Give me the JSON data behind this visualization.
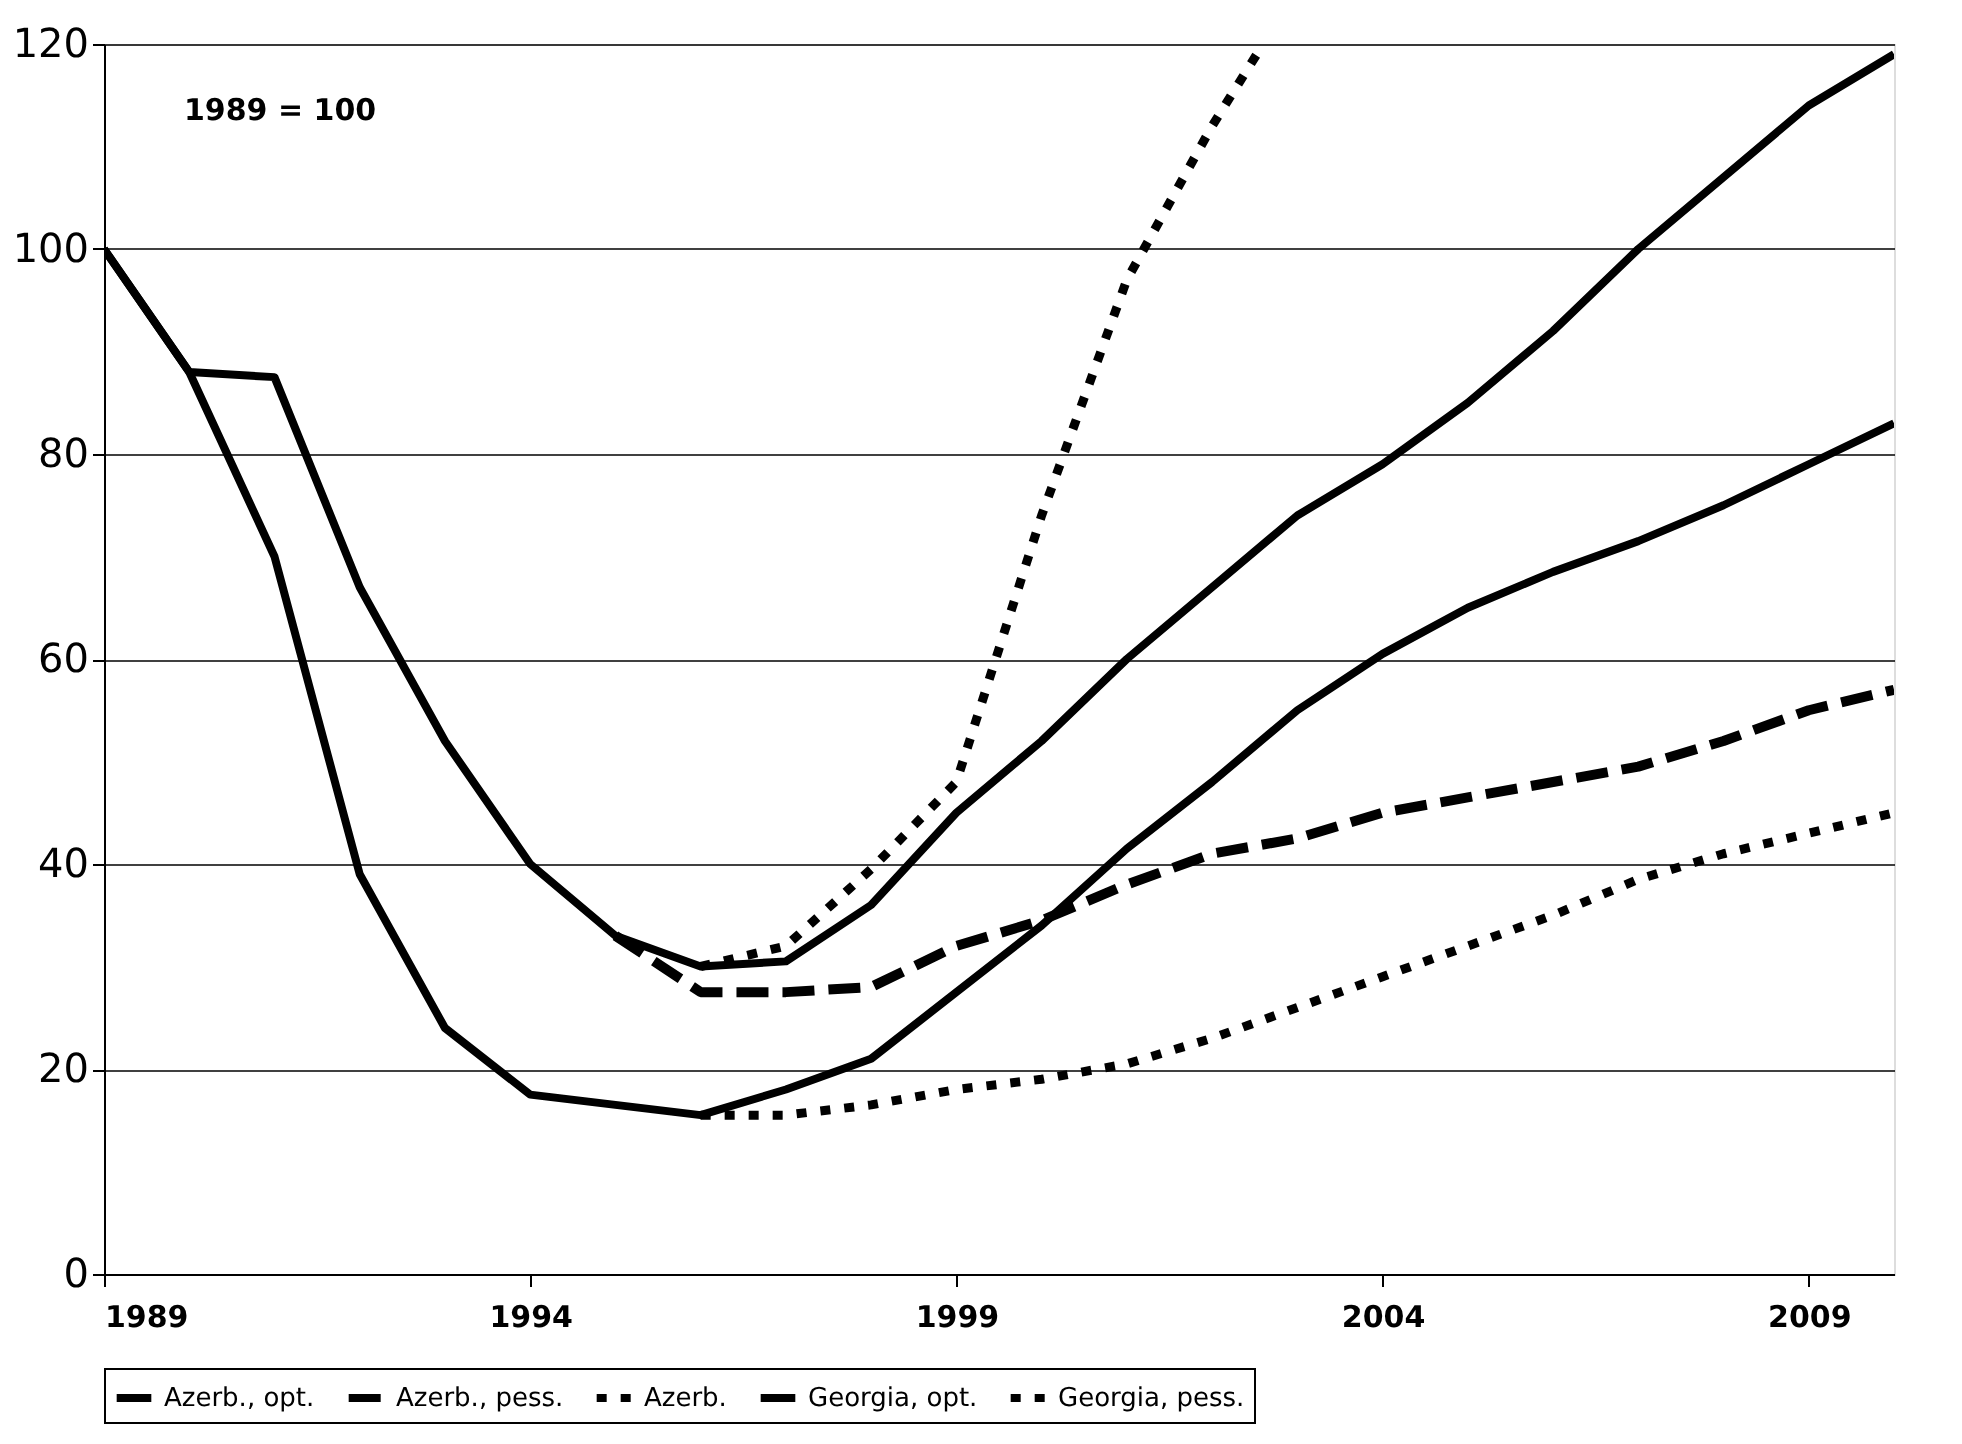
{
  "chart_data": {
    "type": "line",
    "annotations": [
      "1989 = 100"
    ],
    "xlim": [
      1989,
      2010
    ],
    "xticks": [
      1989,
      1994,
      1999,
      2004,
      2009
    ],
    "ylim": [
      0,
      120
    ],
    "yticks": [
      0,
      20,
      40,
      60,
      80,
      100,
      120
    ],
    "grid": "y",
    "legend": "bottom",
    "marker": "none",
    "series": [
      {
        "name": "Azerb., opt.",
        "color": "#000000",
        "line_style": "solid",
        "x": [
          1989,
          1990,
          1991,
          1992,
          1993,
          1994,
          1995,
          1996,
          1997,
          1998,
          1999,
          2000,
          2001,
          2002,
          2003,
          2004,
          2005,
          2006,
          2007,
          2008,
          2009,
          2010
        ],
        "values": [
          100,
          88,
          87.5,
          67,
          52,
          40,
          33,
          30,
          30.5,
          36,
          45,
          52,
          60,
          67,
          74,
          79,
          85,
          92,
          100,
          107,
          114,
          119
        ]
      },
      {
        "name": "Azerb., pess.",
        "color": "#000000",
        "line_style": "dashed",
        "x": [
          1995,
          1996,
          1997,
          1998,
          1999,
          2000,
          2001,
          2002,
          2003,
          2004,
          2005,
          2006,
          2007,
          2008,
          2009,
          2010
        ],
        "values": [
          33,
          27.5,
          27.5,
          28,
          32,
          34.5,
          38,
          41,
          42.5,
          45,
          46.5,
          48,
          49.5,
          52,
          55,
          57
        ]
      },
      {
        "name": "Azerb.",
        "color": "#000000",
        "line_style": "dotted",
        "x": [
          1996,
          1997,
          1998,
          1999,
          2000,
          2001,
          2002,
          2002.6
        ],
        "values": [
          30,
          32,
          39.5,
          48,
          74,
          97,
          112,
          120
        ]
      },
      {
        "name": "Georgia, opt.",
        "color": "#000000",
        "line_style": "solid",
        "x": [
          1989,
          1990,
          1991,
          1992,
          1993,
          1994,
          1995,
          1996,
          1997,
          1998,
          1999,
          2000,
          2001,
          2002,
          2003,
          2004,
          2005,
          2006,
          2007,
          2008,
          2009,
          2010
        ],
        "values": [
          100,
          88,
          70,
          39,
          24,
          17.5,
          16.5,
          15.5,
          18,
          21,
          27.5,
          34,
          41.5,
          48,
          55,
          60.5,
          65,
          68.5,
          71.5,
          75,
          79,
          83
        ]
      },
      {
        "name": "Georgia, pess.",
        "color": "#000000",
        "line_style": "dotted",
        "x": [
          1996,
          1997,
          1998,
          1999,
          2000,
          2001,
          2002,
          2003,
          2004,
          2005,
          2006,
          2007,
          2008,
          2009,
          2010
        ],
        "values": [
          15.5,
          15.5,
          16.5,
          18,
          19,
          20.5,
          23,
          26,
          29,
          32,
          35,
          38.5,
          41,
          43,
          45
        ]
      }
    ]
  }
}
